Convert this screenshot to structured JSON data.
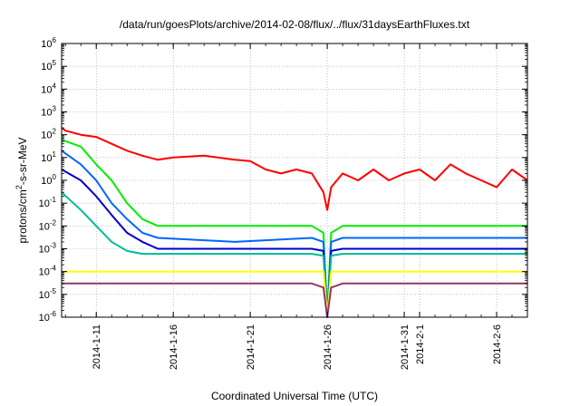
{
  "chart_data": {
    "type": "line",
    "title": "/data/run/goesPlots/archive/2014-02-08/flux/../flux/31daysEarthFluxes.txt",
    "xlabel": "Coordinated Universal Time (UTC)",
    "ylabel": {
      "pre": "protons/cm",
      "sup": "2",
      "post": "-s-sr-MeV"
    },
    "x_range": [
      "2014-01-08T18:00",
      "2014-02-08T00:00"
    ],
    "x_ticks": [
      "2014-1-11",
      "2014-1-16",
      "2014-1-21",
      "2014-1-26",
      "2014-1-31",
      "2014-2-1",
      "2014-2-6"
    ],
    "y_scale": "log",
    "y_range": [
      1e-06,
      1000000.0
    ],
    "y_ticks": [
      "-6",
      "-5",
      "-4",
      "-3",
      "-2",
      "-1",
      "0",
      "1",
      "2",
      "3",
      "4",
      "5",
      "6"
    ],
    "grid": true,
    "colors": [
      "#ff0000",
      "#00ee00",
      "#0066ff",
      "#0000cc",
      "#00bb99",
      "#ffff00",
      "#993366"
    ],
    "series": [
      {
        "color": "#ff0000",
        "x": [
          "2014-01-08T18:00",
          "2014-01-09",
          "2014-01-10",
          "2014-01-11",
          "2014-01-12",
          "2014-01-13",
          "2014-01-14",
          "2014-01-15",
          "2014-01-16",
          "2014-01-18",
          "2014-01-20",
          "2014-01-21",
          "2014-01-22",
          "2014-01-23",
          "2014-01-24",
          "2014-01-25",
          "2014-01-25T18:00",
          "2014-01-26",
          "2014-01-26T06:00",
          "2014-01-27",
          "2014-01-28",
          "2014-01-29",
          "2014-01-30",
          "2014-01-31",
          "2014-02-01",
          "2014-02-02",
          "2014-02-03",
          "2014-02-04",
          "2014-02-05",
          "2014-02-06",
          "2014-02-07",
          "2014-02-08"
        ],
        "y": [
          200,
          150,
          100,
          80,
          40,
          20,
          12,
          8,
          10,
          12,
          8,
          7,
          3,
          2,
          3,
          2,
          0.3,
          0.05,
          0.5,
          2,
          1,
          3,
          1,
          2,
          3,
          1,
          5,
          2,
          1,
          0.5,
          3,
          1
        ]
      },
      {
        "color": "#00ee00",
        "x": [
          "2014-01-08T18:00",
          "2014-01-10",
          "2014-01-11",
          "2014-01-12",
          "2014-01-13",
          "2014-01-14",
          "2014-01-15",
          "2014-01-20",
          "2014-01-25",
          "2014-01-25T18:00",
          "2014-01-26",
          "2014-01-26T06:00",
          "2014-01-27",
          "2014-02-08"
        ],
        "y": [
          60,
          30,
          5,
          1,
          0.1,
          0.02,
          0.01,
          0.01,
          0.01,
          0.005,
          1e-06,
          0.005,
          0.01,
          0.01
        ]
      },
      {
        "color": "#0066ff",
        "x": [
          "2014-01-08T18:00",
          "2014-01-10",
          "2014-01-11",
          "2014-01-12",
          "2014-01-13",
          "2014-01-14",
          "2014-01-15",
          "2014-01-20",
          "2014-01-25",
          "2014-01-25T18:00",
          "2014-01-26",
          "2014-01-26T06:00",
          "2014-01-27",
          "2014-02-08"
        ],
        "y": [
          20,
          5,
          1,
          0.1,
          0.02,
          0.005,
          0.003,
          0.002,
          0.003,
          0.002,
          1e-06,
          0.002,
          0.003,
          0.003
        ]
      },
      {
        "color": "#0000cc",
        "x": [
          "2014-01-08T18:00",
          "2014-01-10",
          "2014-01-11",
          "2014-01-12",
          "2014-01-13",
          "2014-01-14",
          "2014-01-15",
          "2014-01-20",
          "2014-01-25",
          "2014-01-25T18:00",
          "2014-01-26",
          "2014-01-26T06:00",
          "2014-01-27",
          "2014-02-08"
        ],
        "y": [
          3,
          1,
          0.2,
          0.03,
          0.005,
          0.002,
          0.001,
          0.001,
          0.001,
          0.0008,
          1e-06,
          0.0008,
          0.001,
          0.001
        ]
      },
      {
        "color": "#00bb99",
        "x": [
          "2014-01-08T18:00",
          "2014-01-10",
          "2014-01-11",
          "2014-01-12",
          "2014-01-13",
          "2014-01-14",
          "2014-01-20",
          "2014-01-25",
          "2014-01-25T18:00",
          "2014-01-26",
          "2014-01-26T06:00",
          "2014-01-27",
          "2014-02-08"
        ],
        "y": [
          0.3,
          0.05,
          0.01,
          0.002,
          0.0008,
          0.0006,
          0.0006,
          0.0006,
          0.0005,
          1e-06,
          0.0005,
          0.0006,
          0.0006
        ]
      },
      {
        "color": "#ffff00",
        "x": [
          "2014-01-08T18:00",
          "2014-01-12",
          "2014-01-20",
          "2014-01-25",
          "2014-01-25T18:00",
          "2014-01-26",
          "2014-01-26T06:00",
          "2014-01-27",
          "2014-02-08"
        ],
        "y": [
          0.0001,
          0.0001,
          0.0001,
          0.0001,
          0.0001,
          1e-06,
          0.0001,
          0.0001,
          0.0001
        ]
      },
      {
        "color": "#993366",
        "x": [
          "2014-01-08T18:00",
          "2014-01-10",
          "2014-01-15",
          "2014-01-20",
          "2014-01-25",
          "2014-01-25T18:00",
          "2014-01-26",
          "2014-01-26T06:00",
          "2014-01-27",
          "2014-02-08"
        ],
        "y": [
          3e-05,
          3e-05,
          3e-05,
          3e-05,
          3e-05,
          2e-05,
          1e-06,
          2e-05,
          3e-05,
          3e-05
        ]
      }
    ]
  }
}
